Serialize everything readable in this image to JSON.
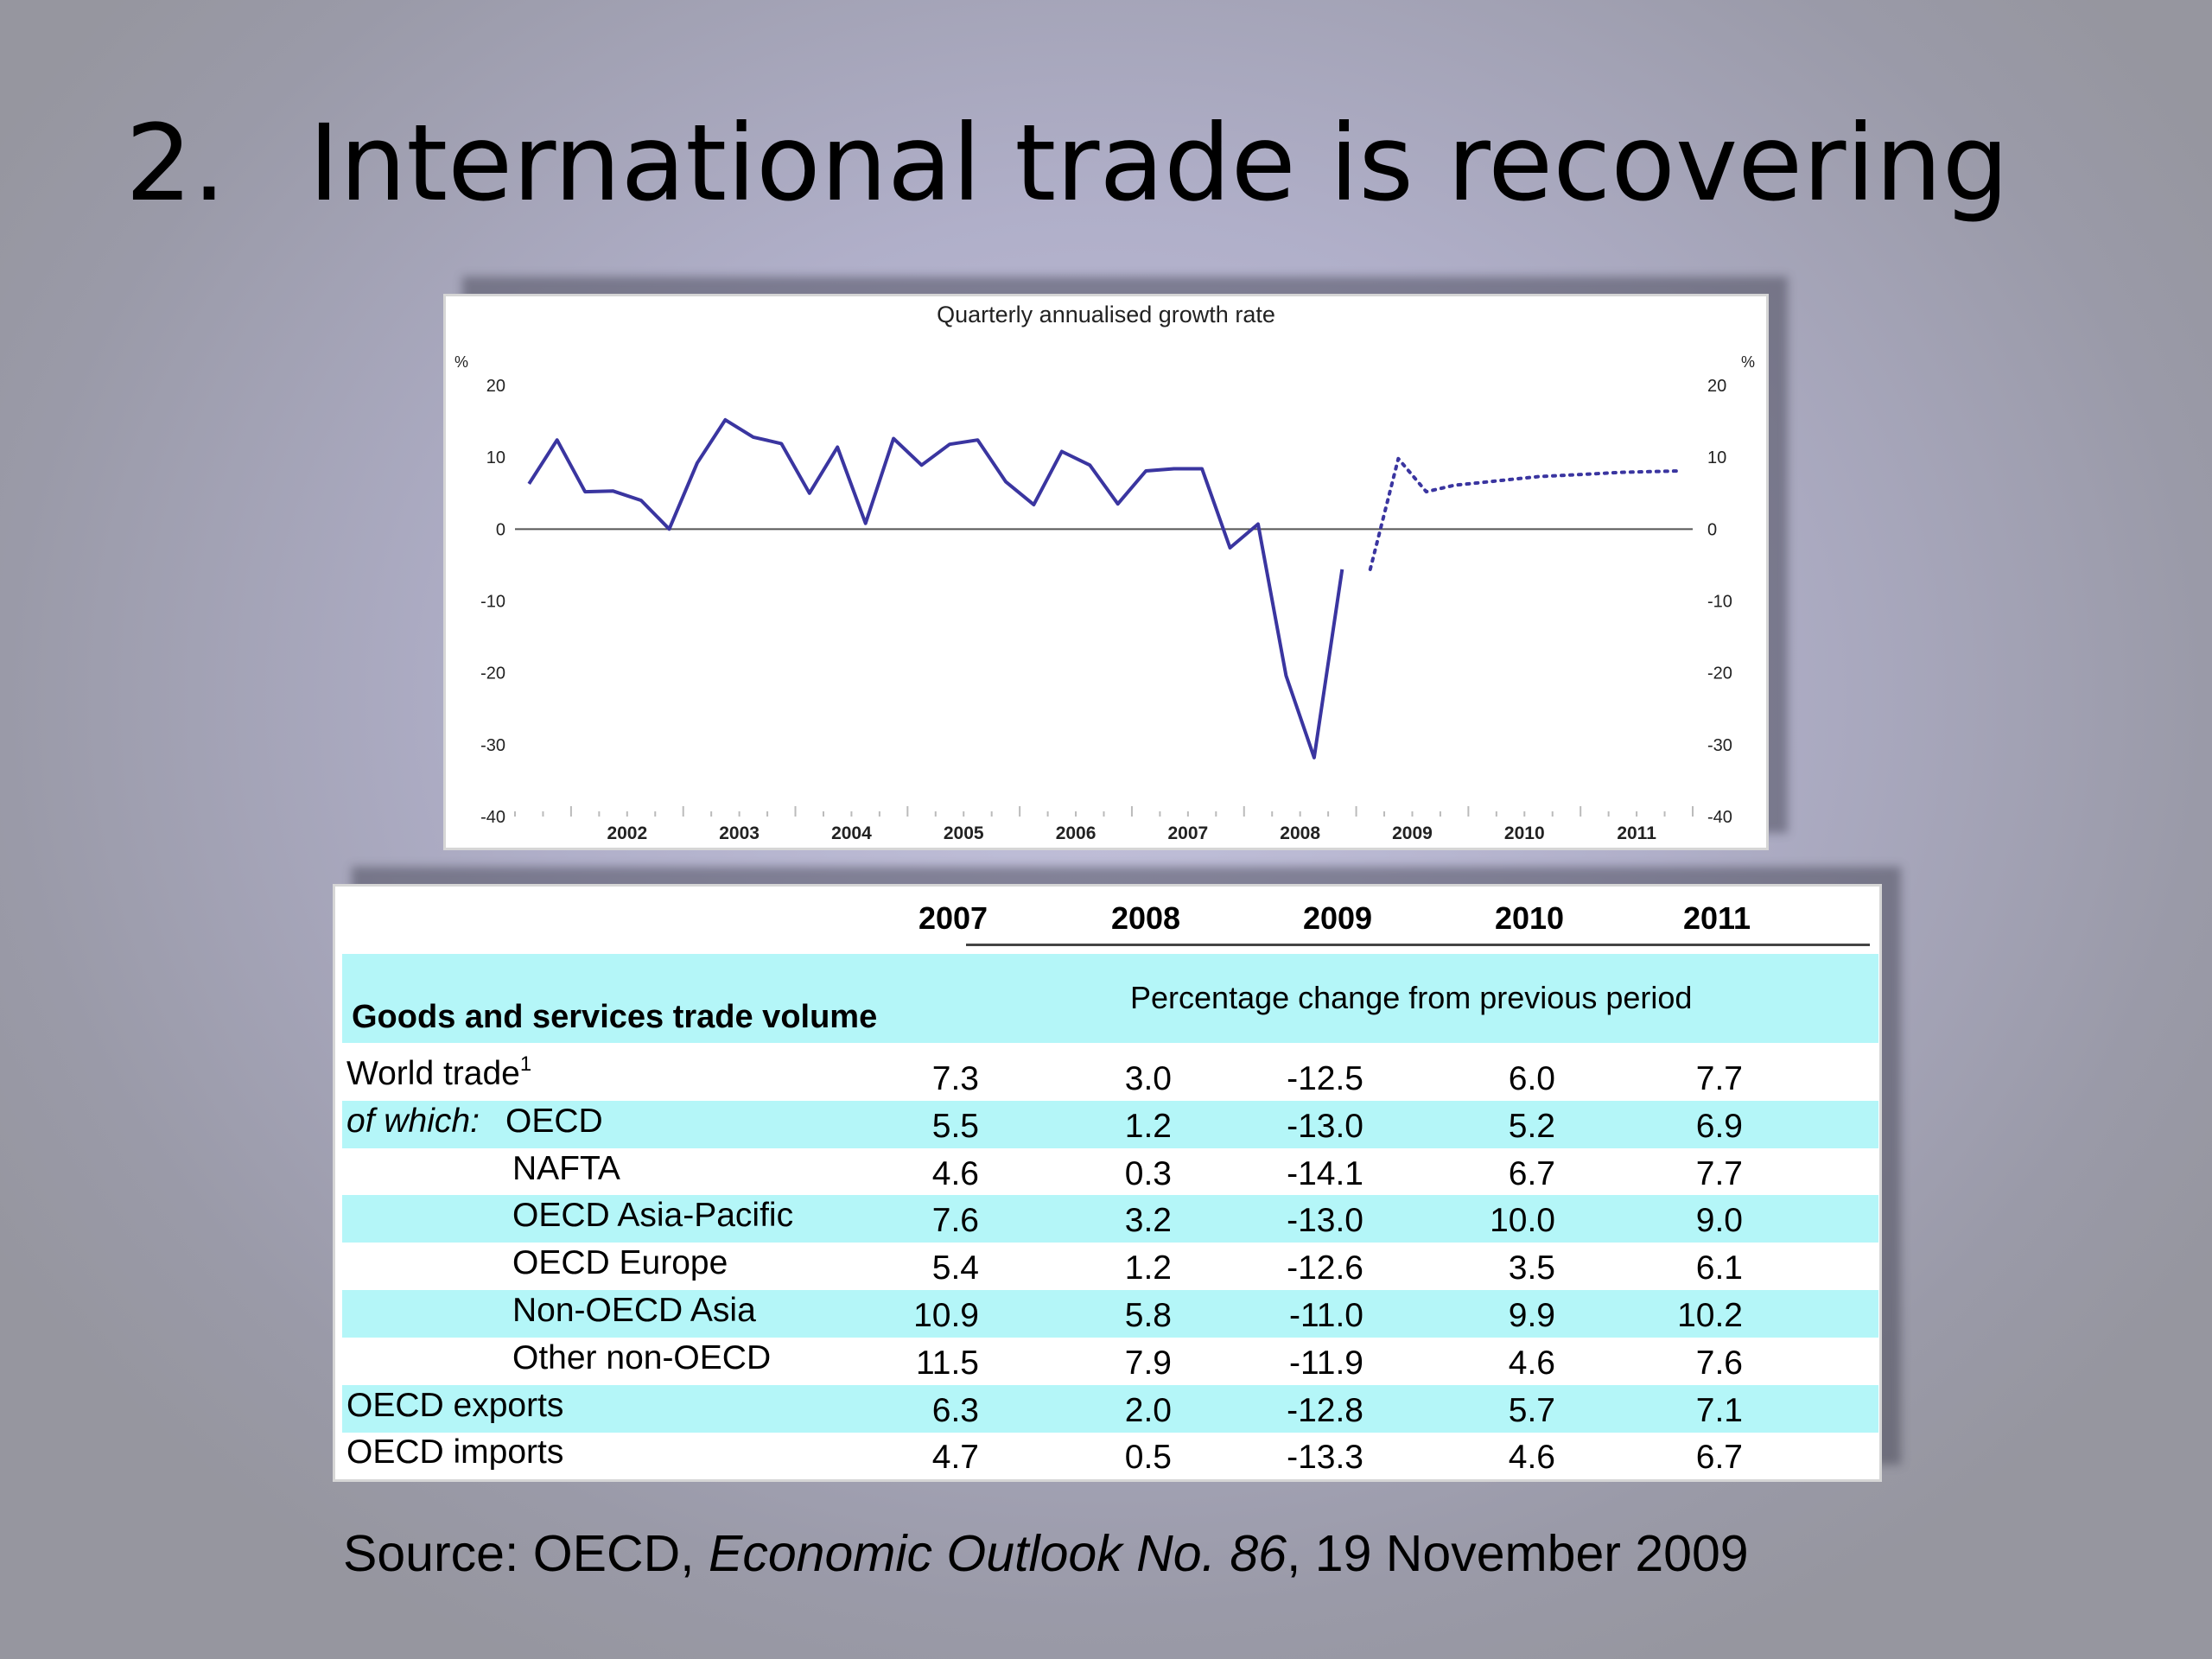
{
  "slide": {
    "title_number": "2.",
    "title_text": "International trade is recovering"
  },
  "chart_data": {
    "type": "line",
    "title": "Quarterly annualised growth rate",
    "ylabel_left": "%",
    "ylabel_right": "%",
    "ylim": [
      -40,
      20
    ],
    "yticks": [
      20,
      10,
      0,
      -10,
      -20,
      -30,
      -40
    ],
    "xlim": [
      2001.5,
      2012.0
    ],
    "xtick_labels": [
      "2002",
      "2003",
      "2004",
      "2005",
      "2006",
      "2007",
      "2008",
      "2009",
      "2010",
      "2011"
    ],
    "series": [
      {
        "style": "solid",
        "color": "#3a35a0",
        "x": [
          2001.625,
          2001.875,
          2002.125,
          2002.375,
          2002.625,
          2002.875,
          2003.125,
          2003.375,
          2003.625,
          2003.875,
          2004.125,
          2004.375,
          2004.625,
          2004.875,
          2005.125,
          2005.375,
          2005.625,
          2005.875,
          2006.125,
          2006.375,
          2006.625,
          2006.875,
          2007.125,
          2007.375,
          2007.625,
          2007.875,
          2008.125,
          2008.375,
          2008.625,
          2008.875,
          2009.125
        ],
        "y": [
          6.3,
          12.4,
          5.2,
          5.3,
          4.0,
          0.0,
          9.2,
          15.2,
          12.8,
          11.9,
          5.0,
          11.4,
          0.8,
          12.6,
          8.9,
          11.8,
          12.4,
          6.6,
          3.4,
          10.8,
          8.9,
          3.5,
          8.1,
          8.4,
          8.4,
          -2.6,
          0.7,
          -20.4,
          -31.8,
          -5.6,
          null
        ]
      },
      {
        "style": "dotted",
        "color": "#3a35a0",
        "x": [
          2009.125,
          2009.375,
          2009.625,
          2009.875,
          2010.125,
          2010.375,
          2010.625,
          2010.875,
          2011.125,
          2011.375,
          2011.625,
          2011.875
        ],
        "y": [
          -5.6,
          9.8,
          5.2,
          6.1,
          6.5,
          6.9,
          7.3,
          7.5,
          7.7,
          7.9,
          8.0,
          8.1
        ]
      }
    ]
  },
  "table": {
    "years": [
      "2007",
      "2008",
      "2009",
      "2010",
      "2011"
    ],
    "section_title": "Goods and services trade volume",
    "section_subtitle": "Percentage change from previous period",
    "rows": [
      {
        "prefix": "",
        "label": "World trade",
        "footnote": "1",
        "indent": 0,
        "values": [
          "7.3",
          "3.0",
          "-12.5",
          "6.0",
          "7.7"
        ]
      },
      {
        "prefix": "of which:",
        "label": "OECD",
        "footnote": "",
        "indent": 0,
        "values": [
          "5.5",
          "1.2",
          "-13.0",
          "5.2",
          "6.9"
        ]
      },
      {
        "prefix": "",
        "label": "NAFTA",
        "footnote": "",
        "indent": 1,
        "values": [
          "4.6",
          "0.3",
          "-14.1",
          "6.7",
          "7.7"
        ]
      },
      {
        "prefix": "",
        "label": "OECD Asia-Pacific",
        "footnote": "",
        "indent": 1,
        "values": [
          "7.6",
          "3.2",
          "-13.0",
          "10.0",
          "9.0"
        ]
      },
      {
        "prefix": "",
        "label": "OECD Europe",
        "footnote": "",
        "indent": 1,
        "values": [
          "5.4",
          "1.2",
          "-12.6",
          "3.5",
          "6.1"
        ]
      },
      {
        "prefix": "",
        "label": "Non-OECD Asia",
        "footnote": "",
        "indent": 1,
        "values": [
          "10.9",
          "5.8",
          "-11.0",
          "9.9",
          "10.2"
        ]
      },
      {
        "prefix": "",
        "label": "Other non-OECD",
        "footnote": "",
        "indent": 1,
        "values": [
          "11.5",
          "7.9",
          "-11.9",
          "4.6",
          "7.6"
        ]
      },
      {
        "prefix": "",
        "label": "OECD exports",
        "footnote": "",
        "indent": 0,
        "values": [
          "6.3",
          "2.0",
          "-12.8",
          "5.7",
          "7.1"
        ]
      },
      {
        "prefix": "",
        "label": "OECD imports",
        "footnote": "",
        "indent": 0,
        "values": [
          "4.7",
          "0.5",
          "-13.3",
          "4.6",
          "6.7"
        ]
      }
    ]
  },
  "source": {
    "prefix": "Source: OECD, ",
    "publication": "Economic Outlook No. 86",
    "suffix": ", 19 November 2009"
  }
}
